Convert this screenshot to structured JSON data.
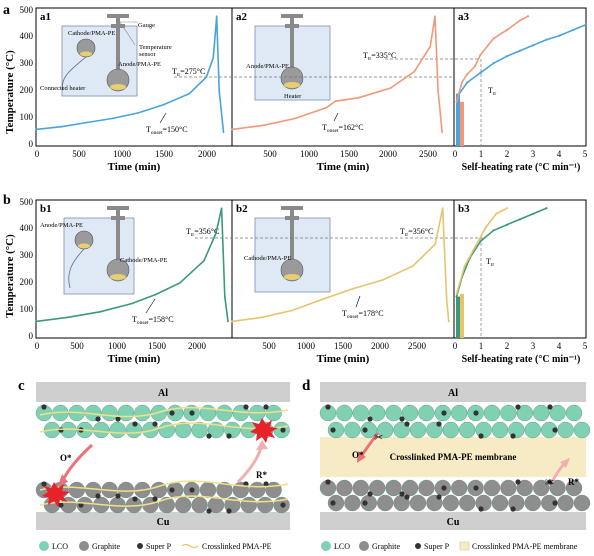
{
  "row_labels": {
    "a": "a",
    "b": "b",
    "c": "c",
    "d": "d"
  },
  "panels": {
    "a1": {
      "tag": "a1",
      "onset": "T",
      "onset_sub": "onset",
      "onset_val": "=150°C",
      "tr": "T",
      "tr_sub": "tr",
      "tr_val": "=275°C",
      "inset": [
        "Cathode/PMA-PE",
        "Gauge",
        "Temperature",
        "sensor",
        "Anode/PMA-PE",
        "Connected heater"
      ]
    },
    "a2": {
      "tag": "a2",
      "onset": "T",
      "onset_sub": "onset",
      "onset_val": "=162°C",
      "tr": "T",
      "tr_sub": "tr",
      "tr_val": "=335°C",
      "inset": [
        "Anode/PMA-PE",
        "Heater"
      ]
    },
    "a3": {
      "tag": "a3",
      "tr": "T",
      "tr_sub": "tr"
    },
    "b1": {
      "tag": "b1",
      "onset": "T",
      "onset_sub": "onset",
      "onset_val": "=158°C",
      "tr": "T",
      "tr_sub": "tr",
      "tr_val": "=356°C",
      "inset": [
        "Anode/PMA-PE",
        "Cathode/PMA-PE"
      ]
    },
    "b2": {
      "tag": "b2",
      "onset": "T",
      "onset_sub": "onset",
      "onset_val": "=178°C",
      "tr": "T",
      "tr_sub": "tr",
      "tr_val": "=356°C",
      "inset": [
        "Cathode/PMA-PE"
      ]
    },
    "b3": {
      "tag": "b3",
      "tr": "T",
      "tr_sub": "tr"
    }
  },
  "axes": {
    "ylabel": "Temperature (°C)",
    "time_label": "Time (min)",
    "rate_label": "Self-heating rate (°C min⁻¹)",
    "time_ticks_1": [
      "0",
      "500",
      "1000",
      "1500",
      "2000"
    ],
    "time_ticks_2": [
      "500",
      "1000",
      "1500",
      "2000",
      "2500"
    ],
    "rate_ticks": [
      "0",
      "1",
      "2",
      "3",
      "4",
      "5"
    ],
    "temp_ticks": [
      "0",
      "100",
      "200",
      "300",
      "400",
      "500"
    ]
  },
  "chart_data": [
    {
      "type": "line",
      "panel": "a1",
      "x": [
        0,
        300,
        600,
        900,
        1200,
        1500,
        1800,
        2000,
        2080,
        2120,
        2150,
        2200
      ],
      "y": [
        60,
        70,
        85,
        100,
        120,
        150,
        190,
        250,
        320,
        470,
        200,
        50
      ],
      "xlim": [
        0,
        2300
      ],
      "ylim": [
        0,
        500
      ],
      "color": "#4aa3dd"
    },
    {
      "type": "line",
      "panel": "a2",
      "x": [
        0,
        400,
        800,
        1200,
        1300,
        1600,
        2000,
        2300,
        2500,
        2560,
        2600,
        2650
      ],
      "y": [
        60,
        75,
        100,
        140,
        162,
        175,
        210,
        270,
        360,
        470,
        200,
        50
      ],
      "xlim": [
        0,
        2800
      ],
      "ylim": [
        0,
        500
      ],
      "color": "#f0997a"
    },
    {
      "type": "scatter",
      "panel": "a3",
      "xlim": [
        0,
        5
      ],
      "ylim": [
        0,
        500
      ],
      "series": [
        {
          "x": [
            0.2,
            0.5,
            1.0,
            1.5,
            2.0,
            2.5,
            3.0,
            3.5,
            4.0,
            4.5,
            5.0
          ],
          "y": [
            190,
            230,
            265,
            300,
            325,
            345,
            365,
            385,
            400,
            420,
            440
          ],
          "color": "#4aa3dd"
        },
        {
          "x": [
            0.1,
            0.3,
            0.5,
            0.8,
            1.0,
            1.5,
            2.0,
            2.5,
            2.8
          ],
          "y": [
            160,
            230,
            260,
            290,
            330,
            390,
            420,
            455,
            470
          ],
          "color": "#f0997a"
        }
      ]
    },
    {
      "type": "line",
      "panel": "b1",
      "x": [
        0,
        400,
        800,
        1200,
        1500,
        1800,
        2100,
        2250,
        2320,
        2360,
        2400
      ],
      "y": [
        60,
        75,
        95,
        125,
        158,
        200,
        280,
        380,
        470,
        150,
        60
      ],
      "xlim": [
        0,
        2450
      ],
      "ylim": [
        0,
        500
      ],
      "color": "#3a9a78"
    },
    {
      "type": "line",
      "panel": "b2",
      "x": [
        0,
        400,
        800,
        1200,
        1600,
        2000,
        2400,
        2700,
        2800,
        2850,
        2880
      ],
      "y": [
        60,
        75,
        100,
        140,
        178,
        210,
        260,
        340,
        470,
        150,
        60
      ],
      "xlim": [
        0,
        2950
      ],
      "ylim": [
        0,
        500
      ],
      "color": "#e6c46c"
    },
    {
      "type": "scatter",
      "panel": "b3",
      "xlim": [
        0,
        5
      ],
      "ylim": [
        0,
        500
      ],
      "series": [
        {
          "x": [
            0.1,
            0.3,
            0.6,
            1.0,
            1.5,
            2.0,
            2.5,
            3.0,
            3.5
          ],
          "y": [
            150,
            220,
            290,
            350,
            390,
            410,
            430,
            450,
            470
          ],
          "color": "#3a9a78"
        },
        {
          "x": [
            0.1,
            0.4,
            0.8,
            1.2,
            1.6,
            2.0
          ],
          "y": [
            160,
            260,
            330,
            400,
            450,
            470
          ],
          "color": "#e6c46c"
        }
      ]
    }
  ],
  "schematic_c": {
    "top": "Al",
    "bottom": "Cu",
    "o_star": "O*",
    "r_star": "R*"
  },
  "schematic_d": {
    "top": "Al",
    "bottom": "Cu",
    "membrane": "Crosslinked PMA-PE membrane",
    "o_star": "O*",
    "r_star": "R*"
  },
  "legend_c": [
    "LCO",
    "Graphite",
    "Super P",
    "Crosslinked PMA-PE"
  ],
  "legend_d": [
    "LCO",
    "Graphite",
    "Super P",
    "Crosslinked PMA-PE membrane"
  ],
  "colors": {
    "lco": "#7fd1b2",
    "graphite": "#8e8e8e",
    "superp": "#333333",
    "yellow_line": "#f0e08a",
    "membrane": "#f6ebc4",
    "flash": "#e8222a"
  }
}
